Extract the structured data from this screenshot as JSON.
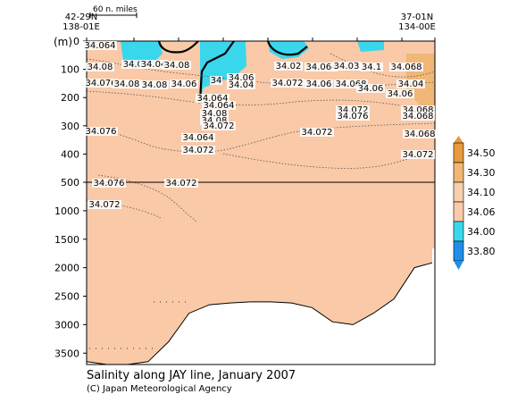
{
  "chart_data": {
    "type": "heatmap",
    "title": "Salinity along JAY line, January 2007",
    "credit": "(C) Japan Meteorological Agency",
    "ylabel": "(m)",
    "scale_label": "60 n. miles",
    "left_station": {
      "lat": "42-29N",
      "lon": "138-01E"
    },
    "right_station": {
      "lat": "37-01N",
      "lon": "134-00E"
    },
    "y_ticks_upper": [
      "0",
      "100",
      "200",
      "300",
      "400",
      "500"
    ],
    "y_ticks_lower": [
      "1000",
      "1500",
      "2000",
      "2500",
      "3000",
      "3500"
    ],
    "ylim_upper": [
      0,
      500
    ],
    "ylim_lower": [
      500,
      3700
    ],
    "colorbar": {
      "labels": [
        "34.50",
        "34.30",
        "34.10",
        "34.06",
        "34.00",
        "33.80"
      ],
      "colors": [
        "#e89a3c",
        "#f0b777",
        "#f7d1ad",
        "#f9c9a8",
        "#3ad7ec",
        "#1f8ee8"
      ]
    },
    "fill_color": "#f9c9a8",
    "contour_labels": [
      {
        "text": "34.064"
      },
      {
        "text": "34.08"
      },
      {
        "text": "34.02"
      },
      {
        "text": "34.04"
      },
      {
        "text": "34.08"
      },
      {
        "text": "34"
      },
      {
        "text": "34.06"
      },
      {
        "text": "34.04"
      },
      {
        "text": "34.02"
      },
      {
        "text": "34.064"
      },
      {
        "text": "34.03"
      },
      {
        "text": "34.1"
      },
      {
        "text": "34.068"
      },
      {
        "text": "34.076"
      },
      {
        "text": "34.08"
      },
      {
        "text": "34.06"
      },
      {
        "text": "34.08"
      },
      {
        "text": "34.072"
      },
      {
        "text": "34.06"
      },
      {
        "text": "34.068"
      },
      {
        "text": "34.06"
      },
      {
        "text": "34.04"
      },
      {
        "text": "34.06"
      },
      {
        "text": "34.064"
      },
      {
        "text": "34.064"
      },
      {
        "text": "34.08"
      },
      {
        "text": "34.08"
      },
      {
        "text": "34.072"
      },
      {
        "text": "34.076"
      },
      {
        "text": "34.068"
      },
      {
        "text": "34.068"
      },
      {
        "text": "34.072"
      },
      {
        "text": "34.064"
      },
      {
        "text": "34.072"
      },
      {
        "text": "34.068"
      },
      {
        "text": "34.076"
      },
      {
        "text": "34.072"
      },
      {
        "text": "34.072"
      }
    ],
    "bottom_profile_m": [
      3650,
      3700,
      3700,
      3650,
      3300,
      2800,
      2650,
      2620,
      2600,
      2600,
      2620,
      2700,
      2950,
      3000,
      2800,
      2550,
      2000,
      1900
    ]
  }
}
